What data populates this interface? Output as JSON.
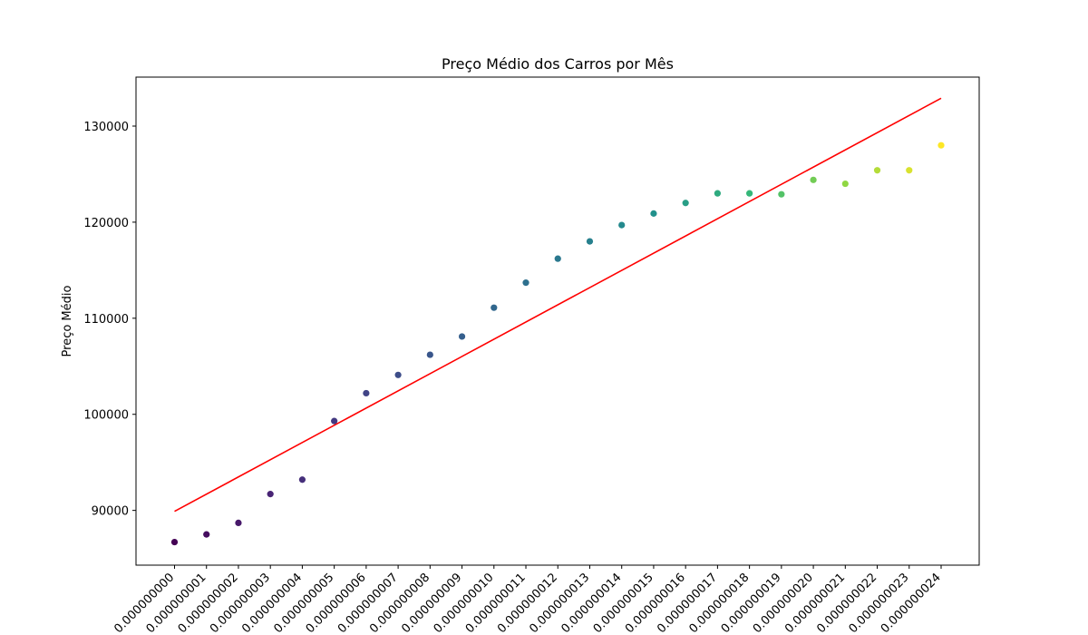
{
  "chart_data": {
    "type": "scatter",
    "title": "Preço Médio dos Carros por Mês",
    "xlabel": "",
    "ylabel": "Preço Médio",
    "x_tick_labels": [
      "0.000000000",
      "0.000000001",
      "0.000000002",
      "0.000000003",
      "0.000000004",
      "0.000000005",
      "0.000000006",
      "0.000000007",
      "0.000000008",
      "0.000000009",
      "0.000000010",
      "0.000000011",
      "0.000000012",
      "0.000000013",
      "0.000000014",
      "0.000000015",
      "0.000000016",
      "0.000000017",
      "0.000000018",
      "0.000000019",
      "0.000000020",
      "0.000000021",
      "0.000000022",
      "0.000000023",
      "0.000000024"
    ],
    "y_ticks": [
      90000,
      100000,
      110000,
      120000,
      130000
    ],
    "ylim": [
      84300,
      135100
    ],
    "points": [
      {
        "x": 0,
        "y": 86700
      },
      {
        "x": 1,
        "y": 87500
      },
      {
        "x": 2,
        "y": 88700
      },
      {
        "x": 3,
        "y": 91700
      },
      {
        "x": 4,
        "y": 93200
      },
      {
        "x": 5,
        "y": 99300
      },
      {
        "x": 6,
        "y": 102200
      },
      {
        "x": 7,
        "y": 104100
      },
      {
        "x": 8,
        "y": 106200
      },
      {
        "x": 9,
        "y": 108100
      },
      {
        "x": 10,
        "y": 111100
      },
      {
        "x": 11,
        "y": 113700
      },
      {
        "x": 12,
        "y": 116200
      },
      {
        "x": 13,
        "y": 118000
      },
      {
        "x": 14,
        "y": 119700
      },
      {
        "x": 15,
        "y": 120900
      },
      {
        "x": 16,
        "y": 122000
      },
      {
        "x": 17,
        "y": 123000
      },
      {
        "x": 18,
        "y": 123000
      },
      {
        "x": 19,
        "y": 122900
      },
      {
        "x": 20,
        "y": 124400
      },
      {
        "x": 21,
        "y": 124000
      },
      {
        "x": 22,
        "y": 125400
      },
      {
        "x": 23,
        "y": 125400
      },
      {
        "x": 24,
        "y": 128000
      }
    ],
    "trend_line": {
      "x": [
        0,
        24
      ],
      "y": [
        89900,
        132900
      ],
      "color": "#ff0000"
    },
    "colormap": "viridis",
    "grid": false,
    "legend": "none"
  }
}
